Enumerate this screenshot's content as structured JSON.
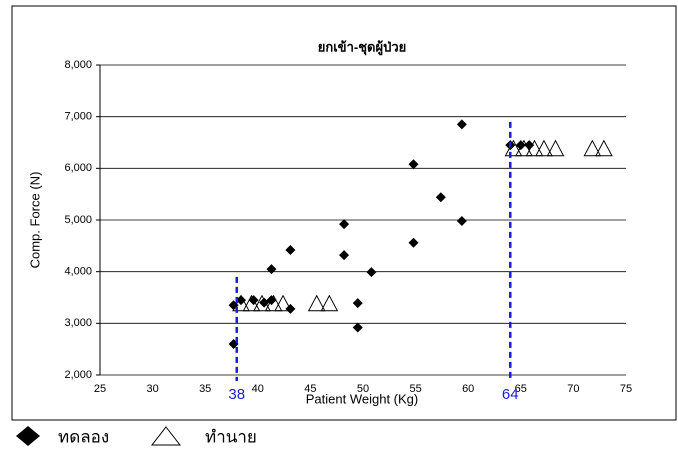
{
  "chart_data": {
    "type": "scatter",
    "title": "ยกเข้า-ชุดผู้ป่วย",
    "x_label": "Patient Weight (Kg)",
    "y_label": "Comp. Force (N)",
    "xlim": [
      25,
      75
    ],
    "xticks": [
      25,
      30,
      35,
      40,
      45,
      50,
      55,
      60,
      65,
      70,
      75
    ],
    "ylim": [
      2000,
      8000
    ],
    "yticks": [
      {
        "value": 2000,
        "label": "2,000"
      },
      {
        "value": 3000,
        "label": "3,000"
      },
      {
        "value": 4000,
        "label": "4,000"
      },
      {
        "value": 5000,
        "label": "5,000"
      },
      {
        "value": 6000,
        "label": "6,000"
      },
      {
        "value": 7000,
        "label": "7,000"
      },
      {
        "value": 8000,
        "label": "8,000"
      }
    ],
    "grid": true,
    "series": [
      {
        "name": "ทดลอง",
        "marker": "diamond",
        "color": "#000000",
        "x": [
          37.7,
          37.7,
          38.4,
          39.6,
          40.6,
          41.3,
          41.3,
          43.1,
          43.1,
          48.2,
          48.2,
          49.5,
          49.5,
          50.8,
          54.8,
          54.8,
          57.4,
          59.4,
          59.4,
          64.0,
          65.0,
          65.8
        ],
        "y": [
          2600,
          3350,
          3450,
          3450,
          3400,
          3450,
          4050,
          3280,
          4420,
          4920,
          4320,
          3390,
          2920,
          3990,
          6080,
          4560,
          5440,
          6850,
          4980,
          6450,
          6450,
          6450
        ]
      },
      {
        "name": "ทำนาย",
        "marker": "triangle",
        "color": "#000000",
        "x": [
          38.4,
          39.4,
          40.4,
          41.5,
          42.4,
          45.6,
          46.8,
          64.3,
          65.3,
          66.3,
          67.2,
          68.3,
          71.8,
          72.9
        ],
        "y": [
          3380,
          3380,
          3380,
          3380,
          3380,
          3380,
          3380,
          6380,
          6380,
          6380,
          6380,
          6380,
          6380,
          6380
        ]
      }
    ],
    "vlines": [
      {
        "x": 38,
        "ymax": 3900,
        "color": "#1a1adc"
      },
      {
        "x": 64,
        "ymax": 6900,
        "color": "#1a1adc"
      }
    ]
  }
}
